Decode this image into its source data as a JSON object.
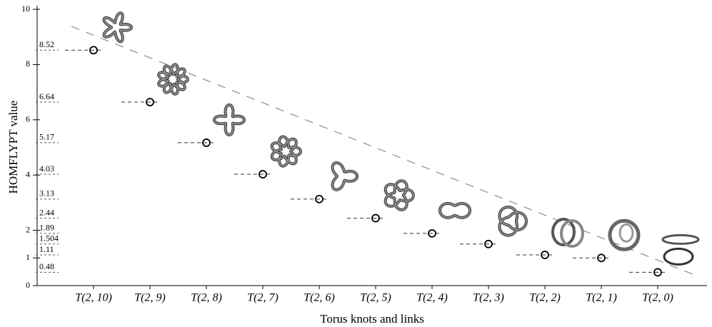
{
  "chart_data": {
    "type": "scatter",
    "x_label": "Torus knots and links",
    "y_label": "HOMFLYPT value",
    "categories": [
      "T(2, 10)",
      "T(2, 9)",
      "T(2, 8)",
      "T(2, 7)",
      "T(2, 6)",
      "T(2, 5)",
      "T(2, 4)",
      "T(2, 3)",
      "T(2, 2)",
      "T(2, 1)",
      "T(2, 0)"
    ],
    "values": [
      8.52,
      6.64,
      5.17,
      4.03,
      3.13,
      2.44,
      1.89,
      1.504,
      1.11,
      1.0,
      0.48
    ],
    "value_labels": [
      "8.52",
      "6.64",
      "5.17",
      "4.03",
      "3.13",
      "2.44",
      "1.89",
      "1.504",
      "1.11",
      null,
      "0.48"
    ],
    "color": "#000000",
    "ylim": [
      0,
      10
    ],
    "yticks": [
      0,
      1,
      2,
      4,
      6,
      8,
      10
    ]
  }
}
